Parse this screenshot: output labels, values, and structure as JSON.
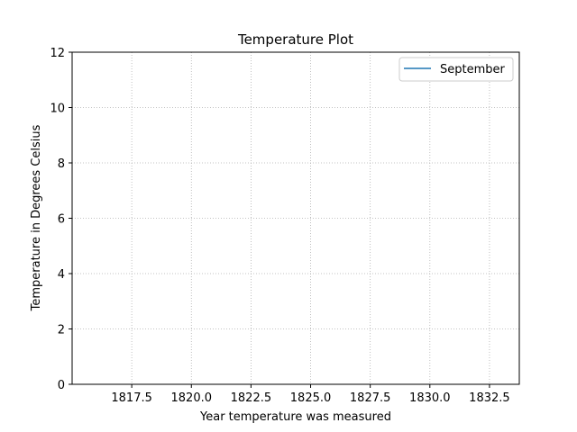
{
  "chart_data": {
    "type": "line",
    "title": "Temperature Plot",
    "xlabel": "Year temperature was measured",
    "ylabel": "Temperature in Degrees Celsius",
    "xlim": [
      1815.0,
      1833.75
    ],
    "ylim": [
      0,
      12
    ],
    "x_ticks": [
      1817.5,
      1820.0,
      1822.5,
      1825.0,
      1827.5,
      1830.0,
      1832.5
    ],
    "x_tick_labels": [
      "1817.5",
      "1820.0",
      "1822.5",
      "1825.0",
      "1827.5",
      "1830.0",
      "1832.5"
    ],
    "y_ticks": [
      0,
      2,
      4,
      6,
      8,
      10,
      12
    ],
    "y_tick_labels": [
      "0",
      "2",
      "4",
      "6",
      "8",
      "10",
      "12"
    ],
    "grid": true,
    "grid_style": "dotted",
    "legend_position": "top-right",
    "series": [
      {
        "name": "September",
        "color": "#1f77b4",
        "x": [],
        "y": []
      }
    ]
  }
}
